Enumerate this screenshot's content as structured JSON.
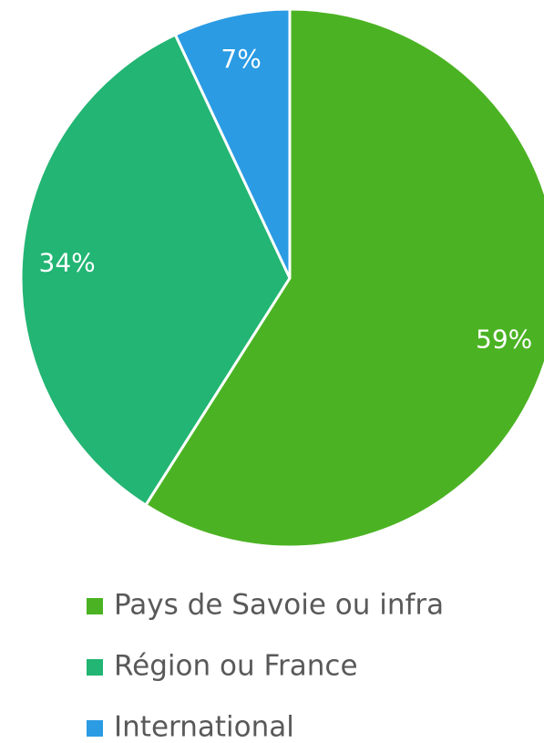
{
  "chart_data": {
    "type": "pie",
    "categories": [
      "Pays de Savoie ou infra",
      "Région ou France",
      "International"
    ],
    "values": [
      59,
      34,
      7
    ],
    "value_labels": [
      "59%",
      "34%",
      "7%"
    ],
    "colors": [
      "#4bb323",
      "#22b573",
      "#2b9be3"
    ],
    "legend": "bottom"
  }
}
